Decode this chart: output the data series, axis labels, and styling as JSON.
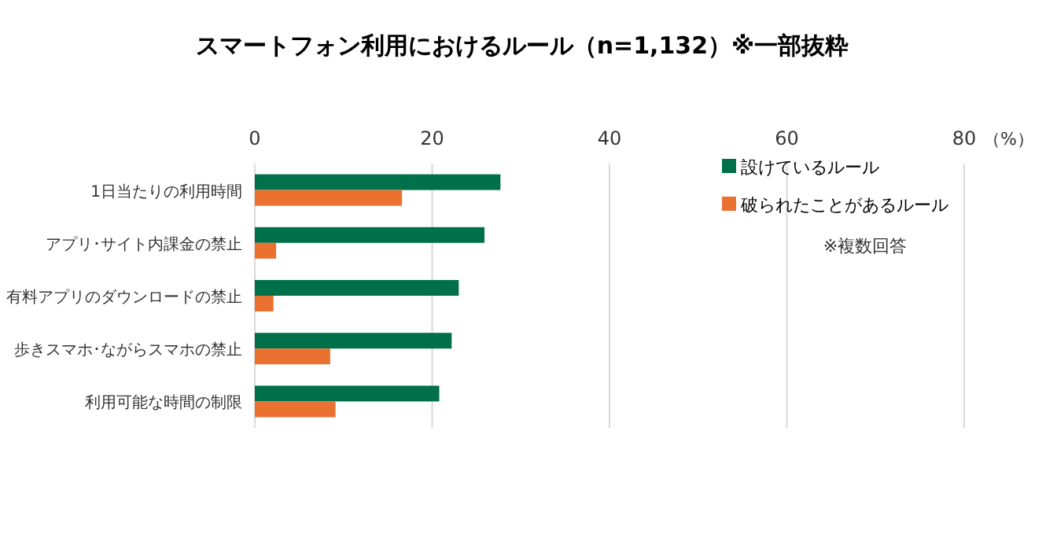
{
  "chart_data": {
    "type": "bar",
    "orientation": "horizontal",
    "title": "スマートフォン利用におけるルール（n=1,132）※一部抜粋",
    "xlabel": "（%）",
    "categories": [
      "1日当たりの利用時間",
      "アプリ･サイト内課金の禁止",
      "有料アプリのダウンロードの禁止",
      "歩きスマホ･ながらスマホの禁止",
      "利用可能な時間の制限"
    ],
    "series": [
      {
        "name": "設けているルール",
        "color": "#00704a",
        "values": [
          27.7,
          25.9,
          23.0,
          22.2,
          20.8
        ]
      },
      {
        "name": "破られたことがあるルール",
        "color": "#eb7131",
        "values": [
          16.6,
          2.4,
          2.1,
          8.5,
          9.1
        ]
      }
    ],
    "xlim": [
      0,
      80
    ],
    "xticks": [
      0,
      20,
      40,
      60,
      80
    ],
    "grid": "x",
    "legend": "top right",
    "annotations": [
      "※複数回答"
    ]
  }
}
